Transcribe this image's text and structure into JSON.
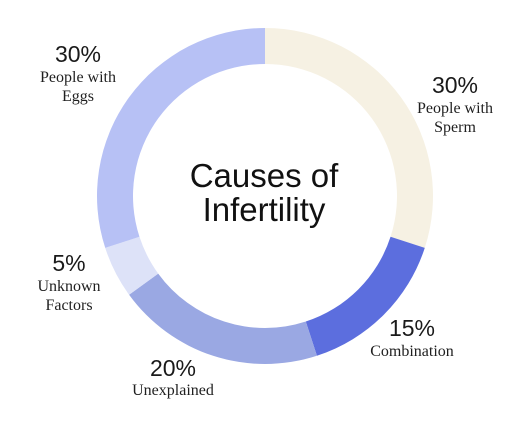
{
  "chart_data": {
    "type": "pie",
    "title_lines": [
      "Causes of",
      "Infertility"
    ],
    "slices": [
      {
        "percent_label": "30%",
        "label_lines": [
          "People with",
          "Sperm"
        ],
        "value": 30,
        "color": "#f6f1e3"
      },
      {
        "percent_label": "15%",
        "label_lines": [
          "Combination"
        ],
        "value": 15,
        "color": "#5c6ede"
      },
      {
        "percent_label": "20%",
        "label_lines": [
          "Unexplained"
        ],
        "value": 20,
        "color": "#9aa8e3"
      },
      {
        "percent_label": "5%",
        "label_lines": [
          "Unknown",
          "Factors"
        ],
        "value": 5,
        "color": "#dde2f8"
      },
      {
        "percent_label": "30%",
        "label_lines": [
          "People with",
          "Eggs"
        ],
        "value": 30,
        "color": "#b7c1f5"
      }
    ]
  }
}
